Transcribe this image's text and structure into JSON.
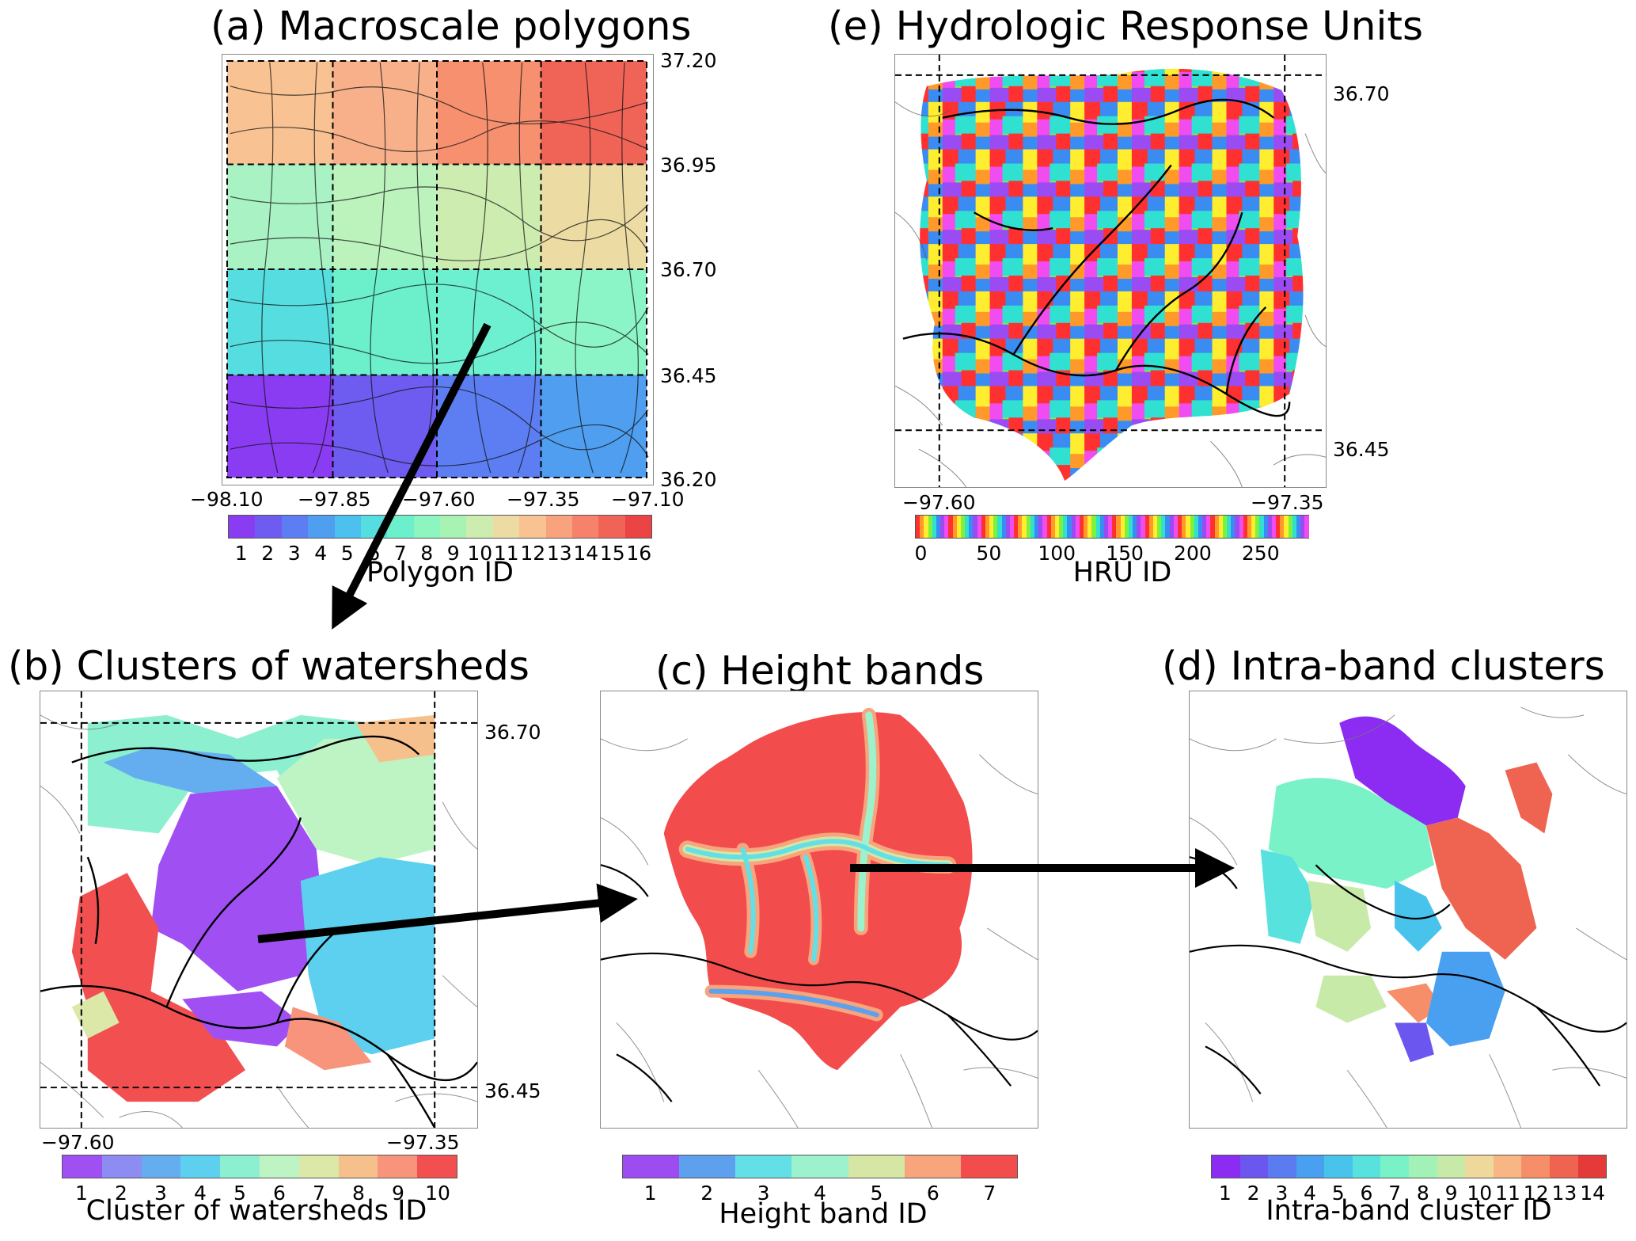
{
  "panels": {
    "a": {
      "title": "(a) Macroscale polygons",
      "lat_ticks": [
        "37.20",
        "36.95",
        "36.70",
        "36.45",
        "36.20"
      ],
      "lon_ticks": [
        "−98.10",
        "−97.85",
        "−97.60",
        "−97.35",
        "−97.10"
      ],
      "colorbar_label": "Polygon ID",
      "colorbar_ticks": [
        "1",
        "2",
        "3",
        "4",
        "5",
        "6",
        "7",
        "8",
        "9",
        "10",
        "11",
        "12",
        "13",
        "14",
        "15",
        "16"
      ],
      "colorbar_colors": [
        "#8a3cf2",
        "#6e5cf0",
        "#5c7ef2",
        "#4f9ef0",
        "#4cc0ee",
        "#56dde0",
        "#6cf0cc",
        "#8cf5c0",
        "#a8f2b4",
        "#cdecb0",
        "#ecdca4",
        "#f8c292",
        "#f8a27e",
        "#f6826c",
        "#f06458",
        "#ea4444"
      ]
    },
    "e": {
      "title": "(e) Hydrologic Response Units",
      "lat_ticks": [
        "36.70",
        "36.45"
      ],
      "lon_ticks": [
        "−97.60",
        "−97.35"
      ],
      "colorbar_label": "HRU ID",
      "colorbar_ticks": [
        "0",
        "50",
        "100",
        "150",
        "200",
        "250"
      ]
    },
    "b": {
      "title": "(b) Clusters of watersheds",
      "lat_ticks": [
        "36.70",
        "36.45"
      ],
      "lon_ticks": [
        "−97.60",
        "−97.35"
      ],
      "colorbar_label": "Cluster of watersheds ID",
      "colorbar_ticks": [
        "1",
        "2",
        "3",
        "4",
        "5",
        "6",
        "7",
        "8",
        "9",
        "10"
      ],
      "colorbar_colors": [
        "#a050f2",
        "#8c8cf2",
        "#64aef0",
        "#5cd0ee",
        "#8cf0d0",
        "#bef4c4",
        "#dce8a8",
        "#f6c08c",
        "#f8947c",
        "#f25050"
      ]
    },
    "c": {
      "title": "(c) Height bands",
      "colorbar_label": "Height band ID",
      "colorbar_ticks": [
        "1",
        "2",
        "3",
        "4",
        "5",
        "6",
        "7"
      ],
      "colorbar_colors": [
        "#9c4cf0",
        "#5ca0ee",
        "#62e0e6",
        "#9cf2cc",
        "#d6e6a4",
        "#f8a47c",
        "#f24c4c"
      ]
    },
    "d": {
      "title": "(d) Intra-band clusters",
      "colorbar_label": "Intra-band cluster ID",
      "colorbar_ticks": [
        "1",
        "2",
        "3",
        "4",
        "5",
        "6",
        "7",
        "8",
        "9",
        "10",
        "11",
        "12",
        "13",
        "14"
      ],
      "colorbar_colors": [
        "#8c2cf2",
        "#6c56f0",
        "#5a7cf0",
        "#4aa0f0",
        "#48c4ec",
        "#58e2de",
        "#7af2c8",
        "#a2f2b8",
        "#c8eaa8",
        "#eed89c",
        "#f8b684",
        "#f68e6a",
        "#ee6450",
        "#e43a3a"
      ]
    }
  },
  "colors": {
    "hru_rainbow": [
      "#ff3030",
      "#ff9a2a",
      "#ffee30",
      "#7cf23a",
      "#30e0d0",
      "#3a8cf2",
      "#9a4cf2",
      "#f04cf0"
    ],
    "arrow": "#000000"
  }
}
